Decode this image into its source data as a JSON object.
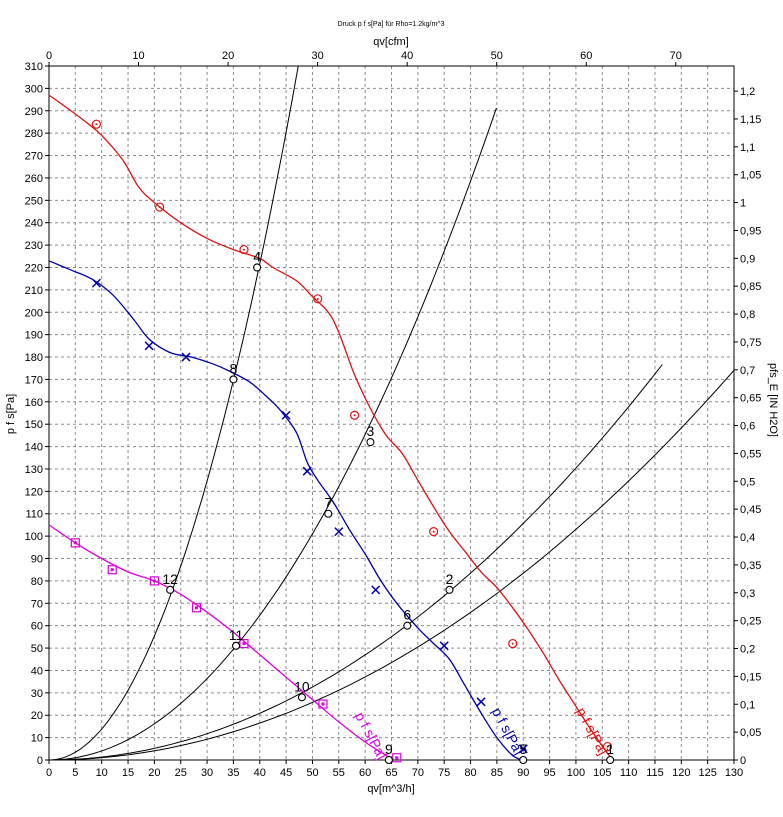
{
  "chart_data": {
    "type": "line",
    "title": "Druck p f s[Pa] für Rho=1.2kg/m^3",
    "xlabel": "qv[m^3/h]",
    "x2label": "qv[cfm]",
    "ylabel": "p f s[Pa]",
    "y2label": "pfs_E [IN H2O]",
    "xlim": [
      0,
      130
    ],
    "ylim": [
      0,
      310
    ],
    "x2lim": [
      0,
      76.5
    ],
    "y2lim": [
      0,
      1.245
    ],
    "x_ticks": [
      "0",
      "5",
      "10",
      "15",
      "20",
      "25",
      "30",
      "35",
      "40",
      "45",
      "50",
      "55",
      "60",
      "65",
      "70",
      "75",
      "80",
      "85",
      "90",
      "95",
      "100",
      "105",
      "110",
      "115",
      "120",
      "125",
      "130"
    ],
    "y_ticks": [
      "0",
      "10",
      "20",
      "30",
      "40",
      "50",
      "60",
      "70",
      "80",
      "90",
      "100",
      "110",
      "120",
      "130",
      "140",
      "150",
      "160",
      "170",
      "180",
      "190",
      "200",
      "210",
      "220",
      "230",
      "240",
      "250",
      "260",
      "270",
      "280",
      "290",
      "300",
      "310"
    ],
    "x2_ticks": [
      "0",
      "10",
      "20",
      "30",
      "40",
      "50",
      "60",
      "70"
    ],
    "y2_ticks": [
      "0",
      "0,05",
      "0,1",
      "0,15",
      "0,2",
      "0,25",
      "0,3",
      "0,35",
      "0,4",
      "0,45",
      "0,5",
      "0,55",
      "0,6",
      "0,65",
      "0,7",
      "0,75",
      "0,8",
      "0,85",
      "0,9",
      "0,95",
      "1",
      "1,05",
      "1,1",
      "1,15",
      "1,2"
    ],
    "grid": true,
    "series": [
      {
        "name": "p f s[Pa]",
        "color": "#dd1111",
        "marker": "circle-dot",
        "values": [
          [
            0,
            297
          ],
          [
            3,
            292
          ],
          [
            7,
            285
          ],
          [
            10,
            279
          ],
          [
            14,
            268
          ],
          [
            17,
            256
          ],
          [
            20,
            249
          ],
          [
            25,
            240
          ],
          [
            30,
            233
          ],
          [
            35,
            228
          ],
          [
            40,
            224
          ],
          [
            42.5,
            220
          ],
          [
            47,
            214
          ],
          [
            50,
            207
          ],
          [
            53,
            200
          ],
          [
            55,
            191
          ],
          [
            58,
            172
          ],
          [
            61,
            157
          ],
          [
            64,
            145
          ],
          [
            67,
            137
          ],
          [
            70,
            125
          ],
          [
            73,
            113
          ],
          [
            76,
            102
          ],
          [
            79,
            93
          ],
          [
            82,
            84
          ],
          [
            85,
            77
          ],
          [
            88,
            68
          ],
          [
            91,
            58
          ],
          [
            94,
            47
          ],
          [
            97,
            35
          ],
          [
            100,
            24
          ],
          [
            103,
            13
          ],
          [
            106,
            3
          ],
          [
            107,
            0
          ]
        ],
        "markers": [
          [
            9,
            284
          ],
          [
            21,
            247
          ],
          [
            37,
            228
          ],
          [
            51,
            206
          ],
          [
            58,
            154
          ],
          [
            73,
            102
          ],
          [
            88,
            52
          ],
          [
            106,
            6
          ]
        ]
      },
      {
        "name": "p f s[Pa]",
        "color": "#0000aa",
        "marker": "x",
        "values": [
          [
            0,
            223
          ],
          [
            4,
            219
          ],
          [
            8,
            215
          ],
          [
            12,
            208
          ],
          [
            16,
            197
          ],
          [
            19,
            188
          ],
          [
            23,
            182
          ],
          [
            27,
            180
          ],
          [
            31,
            177
          ],
          [
            34,
            174
          ],
          [
            38,
            169
          ],
          [
            41,
            163
          ],
          [
            44,
            156
          ],
          [
            47,
            146
          ],
          [
            49,
            133
          ],
          [
            51,
            125
          ],
          [
            54,
            115
          ],
          [
            57,
            103
          ],
          [
            60,
            92
          ],
          [
            63,
            80
          ],
          [
            66,
            70
          ],
          [
            70,
            59
          ],
          [
            73,
            52
          ],
          [
            76,
            45
          ],
          [
            79,
            33
          ],
          [
            82,
            21
          ],
          [
            85,
            10
          ],
          [
            88,
            2
          ],
          [
            90,
            0
          ]
        ],
        "markers": [
          [
            9,
            213
          ],
          [
            19,
            185
          ],
          [
            26,
            180
          ],
          [
            45,
            154
          ],
          [
            49,
            129
          ],
          [
            55,
            102
          ],
          [
            62,
            76
          ],
          [
            75,
            51
          ],
          [
            82,
            26
          ],
          [
            90,
            5
          ]
        ]
      },
      {
        "name": "p f s[Pa]",
        "color": "#dd00dd",
        "marker": "square",
        "values": [
          [
            0,
            105
          ],
          [
            5,
            97
          ],
          [
            10,
            90
          ],
          [
            15,
            84
          ],
          [
            20,
            80
          ],
          [
            25,
            74
          ],
          [
            30,
            66
          ],
          [
            35,
            57
          ],
          [
            40,
            47
          ],
          [
            45,
            37
          ],
          [
            50,
            27
          ],
          [
            55,
            17
          ],
          [
            60,
            8
          ],
          [
            64,
            2
          ],
          [
            65,
            0
          ]
        ],
        "markers": [
          [
            5,
            97
          ],
          [
            12,
            85
          ],
          [
            20,
            80
          ],
          [
            28,
            68
          ],
          [
            37,
            52
          ],
          [
            52,
            25
          ],
          [
            66,
            1
          ]
        ]
      }
    ],
    "system_curves": [
      {
        "k": 0.1385,
        "xmax": 47.3
      },
      {
        "k": 0.0404,
        "xmax": 84.9
      },
      {
        "k": 0.01304,
        "xmax": 116.4
      },
      {
        "k": 0.0103,
        "xmax": 130.0
      }
    ],
    "operating_points": [
      {
        "label": "1",
        "x": 106.5,
        "y": 0
      },
      {
        "label": "2",
        "x": 76,
        "y": 76
      },
      {
        "label": "3",
        "x": 61,
        "y": 142
      },
      {
        "label": "4",
        "x": 39.5,
        "y": 220
      },
      {
        "label": "5",
        "x": 90,
        "y": 0
      },
      {
        "label": "6",
        "x": 68,
        "y": 60
      },
      {
        "label": "7",
        "x": 53,
        "y": 110
      },
      {
        "label": "8",
        "x": 35,
        "y": 170
      },
      {
        "label": "9",
        "x": 64.5,
        "y": 0
      },
      {
        "label": "10",
        "x": 48,
        "y": 28
      },
      {
        "label": "11",
        "x": 35.5,
        "y": 51
      },
      {
        "label": "12",
        "x": 23,
        "y": 76
      }
    ],
    "curve_labels": [
      {
        "text": "p f s[Pa]",
        "color": "#dd1111",
        "x": 100,
        "y": 22
      },
      {
        "text": "p f s[Pa]",
        "color": "#0000aa",
        "x": 84,
        "y": 22
      },
      {
        "text": "p f s[Pa]",
        "color": "#dd00dd",
        "x": 58,
        "y": 20
      }
    ]
  }
}
